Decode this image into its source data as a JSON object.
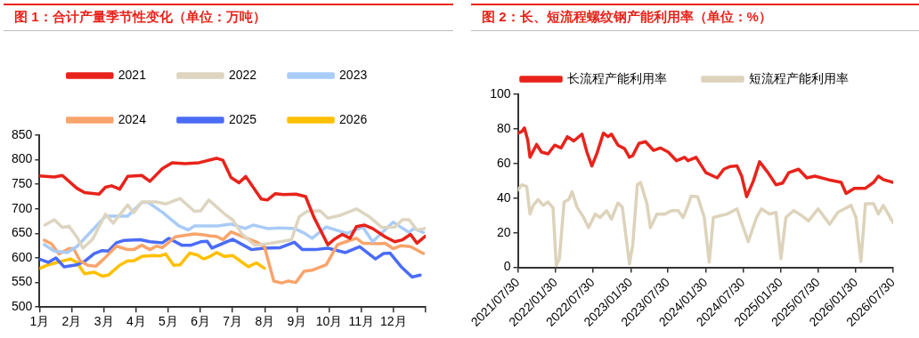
{
  "chart_data": [
    {
      "type": "line",
      "title": "图 1：合计产量季节性变化（单位：万吨）",
      "xlim": [
        1,
        13
      ],
      "xticks": [
        {
          "value": 1,
          "label": "1月"
        },
        {
          "value": 2,
          "label": "2月"
        },
        {
          "value": 3,
          "label": "3月"
        },
        {
          "value": 4,
          "label": "4月"
        },
        {
          "value": 5,
          "label": "5月"
        },
        {
          "value": 6,
          "label": "6月"
        },
        {
          "value": 7,
          "label": "7月"
        },
        {
          "value": 8,
          "label": "8月"
        },
        {
          "value": 9,
          "label": "9月"
        },
        {
          "value": 10,
          "label": "10月"
        },
        {
          "value": 11,
          "label": "11月"
        },
        {
          "value": 12,
          "label": "12月"
        },
        {
          "value": 13,
          "label": null
        }
      ],
      "ylim": [
        500,
        850
      ],
      "yticks": [
        500,
        550,
        600,
        650,
        700,
        750,
        800,
        850
      ],
      "grid": false,
      "legend": "top",
      "series": [
        {
          "name": "2021",
          "color": "#e8231b",
          "x": [
            1.0,
            1.46,
            1.71,
            2.16,
            2.4,
            2.85,
            3.05,
            3.24,
            3.49,
            3.74,
            4.18,
            4.43,
            4.82,
            5.12,
            5.52,
            5.96,
            6.5,
            6.7,
            6.95,
            7.2,
            7.41,
            7.89,
            8.08,
            8.33,
            8.58,
            8.97,
            9.27,
            9.52,
            9.96,
            10.16,
            10.41,
            10.65,
            10.85,
            11.1,
            11.35,
            11.74,
            12.04,
            12.28,
            12.53,
            12.73,
            12.98
          ],
          "values": [
            767,
            765,
            768,
            742,
            733,
            730,
            744,
            747,
            740,
            766,
            768,
            756,
            782,
            794,
            792,
            794,
            803,
            799,
            764,
            753,
            766,
            720,
            718,
            731,
            729,
            730,
            725,
            684,
            627,
            638,
            648,
            640,
            664,
            667,
            660,
            643,
            633,
            637,
            648,
            630,
            644
          ]
        },
        {
          "name": "2022",
          "color": "#ddd5c0",
          "x": [
            1.17,
            1.46,
            1.71,
            1.91,
            2.16,
            2.35,
            2.65,
            3.05,
            3.29,
            3.74,
            3.93,
            4.18,
            4.63,
            4.92,
            5.37,
            5.81,
            6.01,
            6.26,
            6.8,
            7.0,
            7.29,
            7.69,
            8.08,
            8.48,
            8.83,
            9.07,
            9.32,
            9.72,
            9.96,
            10.36,
            10.85,
            11.25,
            11.64,
            12.04,
            12.28,
            12.48,
            12.73,
            12.98
          ],
          "values": [
            667,
            678,
            662,
            665,
            643,
            620,
            638,
            689,
            671,
            708,
            692,
            714,
            714,
            710,
            721,
            695,
            696,
            718,
            687,
            678,
            649,
            626,
            629,
            633,
            637,
            684,
            695,
            696,
            681,
            687,
            700,
            684,
            662,
            663,
            678,
            678,
            657,
            660
          ]
        },
        {
          "name": "2023",
          "color": "#a9cbf7",
          "x": [
            1.15,
            1.46,
            1.86,
            2.16,
            2.65,
            3.05,
            3.74,
            4.18,
            4.38,
            4.82,
            5.32,
            5.62,
            5.81,
            6.01,
            6.5,
            6.95,
            7.39,
            7.64,
            8.08,
            8.48,
            8.92,
            9.22,
            9.47,
            9.91,
            10.56,
            11.05,
            11.35,
            11.99,
            12.48,
            12.63,
            12.93
          ],
          "values": [
            627,
            614,
            611,
            623,
            657,
            685,
            685,
            713,
            713,
            693,
            666,
            657,
            665,
            665,
            665,
            669,
            660,
            667,
            660,
            661,
            660,
            651,
            640,
            663,
            650,
            663,
            633,
            673,
            652,
            660,
            652
          ]
        },
        {
          "name": "2024",
          "color": "#f9a46b",
          "x": [
            1.15,
            1.37,
            1.61,
            1.91,
            2.06,
            2.26,
            2.5,
            2.75,
            3.0,
            3.39,
            3.74,
            3.93,
            4.18,
            4.43,
            4.63,
            4.82,
            5.22,
            5.81,
            6.1,
            6.3,
            6.5,
            6.7,
            6.95,
            7.34,
            7.79,
            7.99,
            8.28,
            8.53,
            8.73,
            8.97,
            9.22,
            9.47,
            9.91,
            10.26,
            10.56,
            10.85,
            11.05,
            11.54,
            11.74,
            11.99,
            12.24,
            12.53,
            12.93
          ],
          "values": [
            636,
            629,
            608,
            619,
            619,
            594,
            585,
            583,
            598,
            624,
            617,
            617,
            626,
            617,
            624,
            621,
            643,
            649,
            647,
            645,
            644,
            637,
            653,
            643,
            631,
            623,
            553,
            549,
            553,
            550,
            573,
            575,
            586,
            627,
            634,
            640,
            630,
            629,
            630,
            619,
            625,
            623,
            609
          ]
        },
        {
          "name": "2025",
          "color": "#4a6cf7",
          "x": [
            1.02,
            1.27,
            1.51,
            1.76,
            2.16,
            2.4,
            2.7,
            2.95,
            3.14,
            3.39,
            3.64,
            4.13,
            4.43,
            4.82,
            5.02,
            5.42,
            5.71,
            6.01,
            6.21,
            6.36,
            7.0,
            7.59,
            7.99,
            8.48,
            8.92,
            9.17,
            9.57,
            9.96,
            10.51,
            10.95,
            11.44,
            11.69,
            11.89,
            12.24,
            12.58,
            12.83
          ],
          "values": [
            597,
            591,
            600,
            582,
            586,
            593,
            609,
            615,
            614,
            631,
            636,
            637,
            633,
            631,
            640,
            626,
            626,
            633,
            634,
            620,
            638,
            617,
            620,
            621,
            632,
            617,
            617,
            620,
            611,
            623,
            598,
            609,
            610,
            582,
            561,
            565
          ]
        },
        {
          "name": "2026",
          "color": "#ffc000",
          "x": [
            1.02,
            1.27,
            1.56,
            1.96,
            2.16,
            2.4,
            2.7,
            2.95,
            3.14,
            3.49,
            3.74,
            3.93,
            4.18,
            4.53,
            4.73,
            4.92,
            5.17,
            5.37,
            5.67,
            5.91,
            6.1,
            6.3,
            6.5,
            6.75,
            7.0,
            7.49,
            7.74,
            7.99
          ],
          "values": [
            579,
            586,
            591,
            598,
            591,
            568,
            571,
            563,
            565,
            585,
            594,
            594,
            603,
            605,
            604,
            608,
            585,
            586,
            610,
            606,
            598,
            603,
            611,
            603,
            605,
            582,
            590,
            579
          ]
        }
      ]
    },
    {
      "type": "line",
      "title": "图 2：长、短流程螺纹钢产能利用率（单位：%）",
      "xlim": [
        "2021-07-30",
        "2026-07-30"
      ],
      "xticks": [
        {
          "value": "2021-07-30",
          "label": "2021/07/30"
        },
        {
          "value": "2022-01-30",
          "label": "2022/01/30"
        },
        {
          "value": "2022-07-30",
          "label": "2022/07/30"
        },
        {
          "value": "2023-01-30",
          "label": "2023/01/30"
        },
        {
          "value": "2023-07-30",
          "label": "2023/07/30"
        },
        {
          "value": "2024-01-30",
          "label": "2024/01/30"
        },
        {
          "value": "2024-07-30",
          "label": "2024/07/30"
        },
        {
          "value": "2025-01-30",
          "label": "2025/01/30"
        },
        {
          "value": "2025-07-30",
          "label": "2025/07/30"
        },
        {
          "value": "2026-01-30",
          "label": "2026/01/30"
        },
        {
          "value": "2026-07-30",
          "label": "2026/07/30"
        }
      ],
      "ylim": [
        0,
        100
      ],
      "yticks": [
        0,
        20,
        40,
        60,
        80,
        100
      ],
      "grid": false,
      "legend": "top",
      "series": [
        {
          "name": "长流程产能利用率",
          "color": "#e8231b",
          "x": [
            "2021-07-30",
            "2021-08-18",
            "2021-08-31",
            "2021-09-16",
            "2021-09-27",
            "2021-10-29",
            "2021-11-22",
            "2021-12-24",
            "2022-01-25",
            "2022-02-25",
            "2022-03-28",
            "2022-04-28",
            "2022-06-07",
            "2022-07-01",
            "2022-07-25",
            "2022-08-18",
            "2022-09-19",
            "2022-10-12",
            "2022-10-28",
            "2022-11-29",
            "2022-12-31",
            "2023-01-24",
            "2023-02-09",
            "2023-03-11",
            "2023-04-12",
            "2023-05-21",
            "2023-06-23",
            "2023-08-01",
            "2023-09-10",
            "2023-10-19",
            "2023-11-05",
            "2023-12-14",
            "2024-01-31",
            "2024-03-26",
            "2024-04-27",
            "2024-05-28",
            "2024-06-30",
            "2024-07-23",
            "2024-08-16",
            "2024-09-17",
            "2024-10-18",
            "2024-11-28",
            "2025-01-06",
            "2025-02-07",
            "2025-03-09",
            "2025-04-26",
            "2025-06-05",
            "2025-07-14",
            "2025-09-16",
            "2025-11-19",
            "2025-12-13",
            "2026-01-22",
            "2026-03-17",
            "2026-04-26",
            "2026-05-19",
            "2026-06-12",
            "2026-07-30"
          ],
          "values": [
            77.5,
            78.5,
            80.5,
            73.6,
            63.6,
            71,
            66.6,
            65.6,
            70.6,
            69,
            75.5,
            73,
            77,
            66.6,
            58.6,
            65.6,
            77.5,
            75.5,
            77,
            70.6,
            68.6,
            63.6,
            64.6,
            71.6,
            72.6,
            67.6,
            69,
            66.6,
            61.6,
            63.6,
            61.6,
            63.6,
            54.7,
            51.7,
            56.7,
            58.3,
            58.6,
            52.7,
            40.8,
            49.7,
            61,
            54.7,
            47.7,
            48.7,
            54.7,
            56.7,
            51.7,
            52.7,
            50.7,
            49.1,
            42.7,
            45.7,
            45.7,
            49.1,
            52.7,
            50.7,
            49.1
          ]
        },
        {
          "name": "短流程产能利用率",
          "color": "#ddd3bb",
          "x": [
            "2021-07-30",
            "2021-08-18",
            "2021-09-11",
            "2021-09-27",
            "2021-10-13",
            "2021-11-06",
            "2021-11-30",
            "2021-12-24",
            "2022-01-17",
            "2022-02-02",
            "2022-02-17",
            "2022-03-12",
            "2022-04-04",
            "2022-04-20",
            "2022-05-14",
            "2022-06-15",
            "2022-07-09",
            "2022-08-10",
            "2022-09-03",
            "2022-10-05",
            "2022-10-28",
            "2022-11-29",
            "2022-12-20",
            "2023-01-24",
            "2023-02-09",
            "2023-03-03",
            "2023-03-19",
            "2023-04-19",
            "2023-05-06",
            "2023-06-06",
            "2023-07-16",
            "2023-08-17",
            "2023-09-18",
            "2023-10-12",
            "2023-11-05",
            "2023-11-20",
            "2023-12-22",
            "2024-01-23",
            "2024-02-16",
            "2024-03-07",
            "2024-05-13",
            "2024-06-30",
            "2024-07-31",
            "2024-08-24",
            "2024-10-03",
            "2024-10-27",
            "2024-12-06",
            "2025-01-06",
            "2025-01-30",
            "2025-02-23",
            "2025-04-02",
            "2025-05-12",
            "2025-06-13",
            "2025-07-30",
            "2025-09-24",
            "2025-11-03",
            "2026-01-06",
            "2026-01-30",
            "2026-02-23",
            "2026-03-17",
            "2026-04-26",
            "2026-05-19",
            "2026-06-12",
            "2026-07-30"
          ],
          "values": [
            44.7,
            47.7,
            46.7,
            30.8,
            35.8,
            39.2,
            35.8,
            37.8,
            34.4,
            1,
            5,
            37.8,
            39.2,
            43.7,
            34.8,
            28.8,
            22.9,
            30.8,
            28.8,
            32.8,
            27.8,
            37.2,
            34.8,
            2,
            12.9,
            47.7,
            49.1,
            36.8,
            22.9,
            30.8,
            30.8,
            32.8,
            32.8,
            28.8,
            35.8,
            41.2,
            40.8,
            28.8,
            3,
            28.8,
            30.8,
            33.8,
            22.9,
            14.9,
            28.8,
            33.8,
            30.8,
            31.8,
            5,
            28.8,
            32.8,
            29.8,
            26.8,
            33.8,
            24.9,
            31.8,
            35.8,
            28.8,
            3.4,
            36.8,
            36.8,
            30.8,
            35.8,
            25.8
          ]
        }
      ]
    }
  ]
}
